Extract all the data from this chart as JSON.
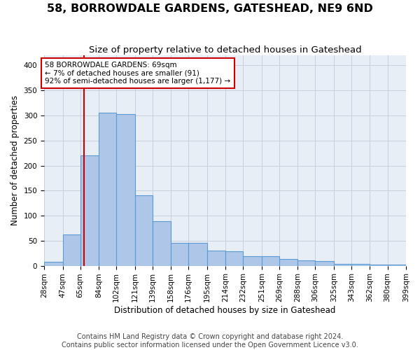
{
  "title": "58, BORROWDALE GARDENS, GATESHEAD, NE9 6ND",
  "subtitle": "Size of property relative to detached houses in Gateshead",
  "xlabel": "Distribution of detached houses by size in Gateshead",
  "ylabel": "Number of detached properties",
  "footer_line1": "Contains HM Land Registry data © Crown copyright and database right 2024.",
  "footer_line2": "Contains public sector information licensed under the Open Government Licence v3.0.",
  "bar_edges": [
    28,
    47,
    65,
    84,
    102,
    121,
    139,
    158,
    176,
    195,
    214,
    232,
    251,
    269,
    288,
    306,
    325,
    343,
    362,
    380,
    399
  ],
  "bar_heights": [
    8,
    63,
    221,
    305,
    303,
    140,
    89,
    46,
    46,
    30,
    29,
    19,
    19,
    14,
    11,
    9,
    4,
    4,
    2,
    2
  ],
  "bar_color": "#aec6e8",
  "bar_edge_color": "#5b9bd5",
  "property_size": 69,
  "property_line_color": "#cc0000",
  "annotation_line1": "58 BORROWDALE GARDENS: 69sqm",
  "annotation_line2": "← 7% of detached houses are smaller (91)",
  "annotation_line3": "92% of semi-detached houses are larger (1,177) →",
  "annotation_box_color": "#ffffff",
  "annotation_box_edge": "#cc0000",
  "ylim": [
    0,
    420
  ],
  "yticks": [
    0,
    50,
    100,
    150,
    200,
    250,
    300,
    350,
    400
  ],
  "grid_color": "#c8d0dc",
  "bg_color": "#e8eef5",
  "title_fontsize": 11.5,
  "subtitle_fontsize": 9.5,
  "axis_label_fontsize": 8.5,
  "ylabel_fontsize": 8.5,
  "tick_fontsize": 7.5,
  "footer_fontsize": 7
}
